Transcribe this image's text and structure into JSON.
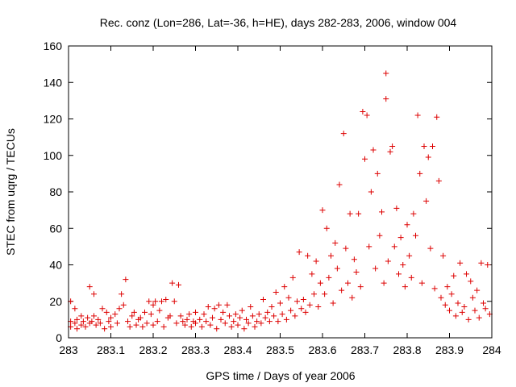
{
  "chart_data": {
    "type": "scatter",
    "title": "Rec. conz (Lon=286, Lat=-36, h=HE), days 282-283, 2006, window 004",
    "xlabel": "GPS time / Days of year 2006",
    "ylabel": "STEC from uqrg / TECUs",
    "xlim": [
      283,
      284
    ],
    "ylim": [
      0,
      160
    ],
    "xticks": [
      "283",
      "283.1",
      "283.2",
      "283.3",
      "283.4",
      "283.5",
      "283.6",
      "283.7",
      "283.8",
      "283.9",
      "284"
    ],
    "xtick_values": [
      283,
      283.1,
      283.2,
      283.3,
      283.4,
      283.5,
      283.6,
      283.7,
      283.8,
      283.9,
      284
    ],
    "yticks": [
      "0",
      "20",
      "40",
      "60",
      "80",
      "100",
      "120",
      "140",
      "160"
    ],
    "ytick_values": [
      0,
      20,
      40,
      60,
      80,
      100,
      120,
      140,
      160
    ],
    "marker": "+",
    "color": "#dd0000",
    "grid": false,
    "series": [
      {
        "name": "STEC",
        "points": [
          [
            283.005,
            20
          ],
          [
            283.005,
            9
          ],
          [
            283.005,
            6
          ],
          [
            283.015,
            16
          ],
          [
            283.015,
            8
          ],
          [
            283.02,
            10
          ],
          [
            283.02,
            5
          ],
          [
            283.03,
            12
          ],
          [
            283.03,
            7
          ],
          [
            283.035,
            9
          ],
          [
            283.04,
            6
          ],
          [
            283.045,
            11
          ],
          [
            283.05,
            28
          ],
          [
            283.05,
            8
          ],
          [
            283.055,
            9
          ],
          [
            283.06,
            24
          ],
          [
            283.06,
            12
          ],
          [
            283.065,
            7
          ],
          [
            283.07,
            10
          ],
          [
            283.075,
            8
          ],
          [
            283.08,
            16
          ],
          [
            283.085,
            5
          ],
          [
            283.09,
            14
          ],
          [
            283.095,
            9
          ],
          [
            283.1,
            11
          ],
          [
            283.1,
            6
          ],
          [
            283.11,
            13
          ],
          [
            283.115,
            8
          ],
          [
            283.12,
            16
          ],
          [
            283.125,
            24
          ],
          [
            283.13,
            18
          ],
          [
            283.135,
            32
          ],
          [
            283.14,
            9
          ],
          [
            283.145,
            6
          ],
          [
            283.15,
            12
          ],
          [
            283.155,
            14
          ],
          [
            283.16,
            7
          ],
          [
            283.165,
            10
          ],
          [
            283.17,
            11
          ],
          [
            283.175,
            6
          ],
          [
            283.18,
            14
          ],
          [
            283.185,
            8
          ],
          [
            283.19,
            20
          ],
          [
            283.195,
            13
          ],
          [
            283.2,
            18
          ],
          [
            283.2,
            7
          ],
          [
            283.205,
            20
          ],
          [
            283.21,
            9
          ],
          [
            283.215,
            15
          ],
          [
            283.22,
            20
          ],
          [
            283.225,
            6
          ],
          [
            283.23,
            21
          ],
          [
            283.235,
            11
          ],
          [
            283.24,
            12
          ],
          [
            283.245,
            30
          ],
          [
            283.25,
            20
          ],
          [
            283.255,
            8
          ],
          [
            283.26,
            29
          ],
          [
            283.265,
            12
          ],
          [
            283.27,
            9
          ],
          [
            283.275,
            7
          ],
          [
            283.28,
            10
          ],
          [
            283.285,
            13
          ],
          [
            283.29,
            6
          ],
          [
            283.295,
            9
          ],
          [
            283.3,
            14
          ],
          [
            283.3,
            8
          ],
          [
            283.31,
            10
          ],
          [
            283.315,
            6
          ],
          [
            283.32,
            13
          ],
          [
            283.325,
            9
          ],
          [
            283.33,
            17
          ],
          [
            283.335,
            7
          ],
          [
            283.34,
            11
          ],
          [
            283.345,
            16
          ],
          [
            283.35,
            5
          ],
          [
            283.355,
            18
          ],
          [
            283.36,
            10
          ],
          [
            283.365,
            14
          ],
          [
            283.37,
            8
          ],
          [
            283.375,
            18
          ],
          [
            283.38,
            12
          ],
          [
            283.385,
            6
          ],
          [
            283.39,
            9
          ],
          [
            283.395,
            13
          ],
          [
            283.4,
            7
          ],
          [
            283.405,
            11
          ],
          [
            283.41,
            15
          ],
          [
            283.415,
            5
          ],
          [
            283.42,
            10
          ],
          [
            283.425,
            8
          ],
          [
            283.43,
            17
          ],
          [
            283.435,
            12
          ],
          [
            283.44,
            6
          ],
          [
            283.445,
            9
          ],
          [
            283.45,
            13
          ],
          [
            283.455,
            8
          ],
          [
            283.46,
            21
          ],
          [
            283.465,
            11
          ],
          [
            283.47,
            14
          ],
          [
            283.475,
            9
          ],
          [
            283.48,
            17
          ],
          [
            283.485,
            12
          ],
          [
            283.49,
            25
          ],
          [
            283.495,
            9
          ],
          [
            283.5,
            19
          ],
          [
            283.505,
            13
          ],
          [
            283.51,
            28
          ],
          [
            283.515,
            10
          ],
          [
            283.52,
            22
          ],
          [
            283.525,
            15
          ],
          [
            283.53,
            33
          ],
          [
            283.535,
            12
          ],
          [
            283.54,
            20
          ],
          [
            283.545,
            47
          ],
          [
            283.55,
            16
          ],
          [
            283.555,
            21
          ],
          [
            283.56,
            14
          ],
          [
            283.565,
            45
          ],
          [
            283.57,
            18
          ],
          [
            283.575,
            35
          ],
          [
            283.58,
            24
          ],
          [
            283.585,
            42
          ],
          [
            283.59,
            17
          ],
          [
            283.595,
            30
          ],
          [
            283.6,
            70
          ],
          [
            283.605,
            24
          ],
          [
            283.61,
            60
          ],
          [
            283.615,
            33
          ],
          [
            283.62,
            45
          ],
          [
            283.625,
            19
          ],
          [
            283.63,
            52
          ],
          [
            283.635,
            38
          ],
          [
            283.64,
            84
          ],
          [
            283.645,
            26
          ],
          [
            283.65,
            112
          ],
          [
            283.655,
            49
          ],
          [
            283.66,
            30
          ],
          [
            283.665,
            68
          ],
          [
            283.67,
            22
          ],
          [
            283.675,
            43
          ],
          [
            283.68,
            36
          ],
          [
            283.685,
            68
          ],
          [
            283.69,
            28
          ],
          [
            283.695,
            124
          ],
          [
            283.7,
            98
          ],
          [
            283.705,
            122
          ],
          [
            283.71,
            50
          ],
          [
            283.715,
            80
          ],
          [
            283.72,
            103
          ],
          [
            283.725,
            38
          ],
          [
            283.73,
            90
          ],
          [
            283.735,
            56
          ],
          [
            283.74,
            69
          ],
          [
            283.745,
            30
          ],
          [
            283.75,
            145
          ],
          [
            283.75,
            131
          ],
          [
            283.755,
            42
          ],
          [
            283.76,
            102
          ],
          [
            283.765,
            105
          ],
          [
            283.77,
            50
          ],
          [
            283.775,
            71
          ],
          [
            283.78,
            35
          ],
          [
            283.785,
            55
          ],
          [
            283.79,
            40
          ],
          [
            283.795,
            28
          ],
          [
            283.8,
            62
          ],
          [
            283.805,
            45
          ],
          [
            283.81,
            33
          ],
          [
            283.815,
            68
          ],
          [
            283.82,
            56
          ],
          [
            283.825,
            122
          ],
          [
            283.83,
            90
          ],
          [
            283.835,
            30
          ],
          [
            283.84,
            105
          ],
          [
            283.845,
            75
          ],
          [
            283.85,
            99
          ],
          [
            283.855,
            49
          ],
          [
            283.86,
            105
          ],
          [
            283.865,
            27
          ],
          [
            283.87,
            121
          ],
          [
            283.875,
            86
          ],
          [
            283.88,
            22
          ],
          [
            283.885,
            45
          ],
          [
            283.89,
            18
          ],
          [
            283.895,
            28
          ],
          [
            283.9,
            15
          ],
          [
            283.905,
            24
          ],
          [
            283.91,
            34
          ],
          [
            283.915,
            12
          ],
          [
            283.92,
            19
          ],
          [
            283.925,
            41
          ],
          [
            283.93,
            14
          ],
          [
            283.935,
            17
          ],
          [
            283.94,
            35
          ],
          [
            283.945,
            10
          ],
          [
            283.95,
            31
          ],
          [
            283.955,
            22
          ],
          [
            283.96,
            15
          ],
          [
            283.965,
            26
          ],
          [
            283.97,
            11
          ],
          [
            283.975,
            41
          ],
          [
            283.98,
            19
          ],
          [
            283.985,
            16
          ],
          [
            283.99,
            40
          ],
          [
            283.995,
            13
          ]
        ]
      }
    ]
  }
}
